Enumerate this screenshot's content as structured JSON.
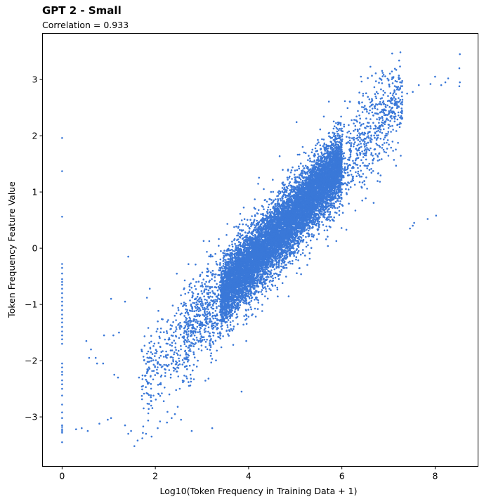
{
  "chart_data": {
    "type": "scatter",
    "title": "GPT 2 - Small",
    "subtitle": "Correlation = 0.933",
    "xlabel": "Log10(Token Frequency in Training Data + 1)",
    "ylabel": "Token Frequency Feature Value",
    "xlim": [
      -0.42,
      8.92
    ],
    "ylim": [
      -3.88,
      3.82
    ],
    "x_ticks": [
      0,
      2,
      4,
      6,
      8
    ],
    "y_ticks": [
      -3,
      -2,
      -1,
      0,
      1,
      2,
      3
    ],
    "grid": false,
    "legend": "none",
    "point_color": "#3a78d8",
    "series": [
      {
        "x": [
          8.53,
          8.52,
          8.53,
          8.52,
          8.28,
          8.22,
          8.13,
          8.0,
          7.9,
          7.65,
          7.52,
          7.4,
          7.25,
          8.02,
          7.84,
          7.55,
          7.52,
          7.46,
          1.42,
          1.35,
          1.05,
          0.9,
          0.62,
          0.52,
          0.72,
          0.88,
          1.12,
          1.2,
          0.75,
          0.58,
          1.1,
          1.22,
          0.3,
          0.42,
          0.55,
          0.8,
          0.98,
          1.05,
          1.35,
          1.42,
          1.48,
          1.55,
          1.62,
          1.72,
          1.8,
          1.92,
          2.05,
          2.1,
          2.25,
          2.35,
          3.22,
          2.78,
          1.82,
          1.88,
          3.95,
          3.85,
          1.65,
          2.2,
          2.48,
          2.55,
          2.42,
          2.3,
          2.18
        ],
        "y": [
          3.45,
          3.2,
          2.95,
          2.88,
          3.02,
          2.95,
          2.9,
          3.05,
          2.92,
          2.9,
          2.78,
          2.75,
          2.95,
          0.58,
          0.52,
          0.45,
          0.4,
          0.35,
          -0.15,
          -0.95,
          -0.9,
          -1.55,
          -1.8,
          -1.65,
          -1.95,
          -2.05,
          -2.25,
          -2.3,
          -2.05,
          -1.95,
          -1.55,
          -1.5,
          -3.22,
          -3.2,
          -3.25,
          -3.12,
          -3.05,
          -3.02,
          -3.15,
          -3.3,
          -3.25,
          -3.52,
          -3.42,
          -3.38,
          -3.3,
          -3.35,
          -3.2,
          -3.08,
          -3.1,
          -3.02,
          -3.2,
          -3.25,
          -0.88,
          -0.72,
          -1.65,
          -2.55,
          -2.3,
          -2.15,
          -2.82,
          -3.05,
          -2.95,
          -2.6,
          -2.72
        ]
      }
    ],
    "outliers_at_zero": {
      "x": 0,
      "y": [
        1.96,
        1.37,
        0.56,
        -0.28,
        -0.35,
        -0.45,
        -0.55,
        -0.6,
        -0.65,
        -0.72,
        -0.8,
        -0.88,
        -0.95,
        -1.02,
        -1.1,
        -1.18,
        -1.25,
        -1.32,
        -1.4,
        -1.48,
        -1.55,
        -1.62,
        -1.7,
        -2.05,
        -2.12,
        -2.2,
        -2.25,
        -2.35,
        -2.42,
        -2.5,
        -2.62,
        -2.78,
        -2.92,
        -3.02,
        -3.15,
        -3.18,
        -3.22,
        -3.25,
        -3.28,
        -3.45
      ]
    },
    "dense_band": {
      "slope": 0.9,
      "intercept": -3.9,
      "x_range": [
        2.6,
        7.3
      ],
      "core_x_range": [
        3.4,
        6.0
      ],
      "spread_y": 0.28
    }
  }
}
